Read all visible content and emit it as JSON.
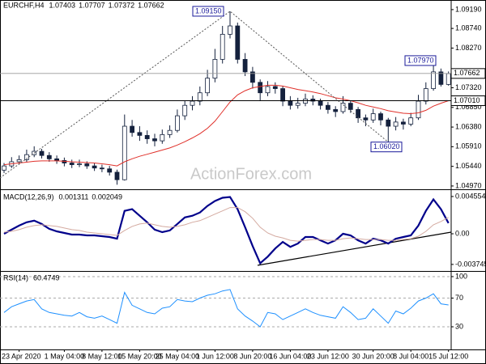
{
  "chart_data": [
    {
      "type": "candlestick",
      "title": "EURCHF,H4",
      "header_values": [
        1.07403,
        1.07707,
        1.07372,
        1.07662
      ],
      "watermark": "ActionForex.com",
      "color": "#14213d",
      "ylim": [
        1.0493,
        1.0942
      ],
      "yticks": [
        {
          "value": 1.0919,
          "label": "1.09190"
        },
        {
          "value": 1.0874,
          "label": "1.08740"
        },
        {
          "value": 1.0827,
          "label": "1.08270"
        },
        {
          "value": 1.0732,
          "label": "1.07320"
        },
        {
          "value": 1.0685,
          "label": "1.06850"
        },
        {
          "value": 1.0638,
          "label": "1.06380"
        },
        {
          "value": 1.0591,
          "label": "1.05910"
        },
        {
          "value": 1.0544,
          "label": "1.05440"
        },
        {
          "value": 1.0497,
          "label": "1.04970"
        }
      ],
      "ohlc": [
        [
          1.0535,
          1.0552,
          1.0528,
          1.0545
        ],
        [
          1.0545,
          1.0566,
          1.054,
          1.0555
        ],
        [
          1.0555,
          1.057,
          1.0548,
          1.056
        ],
        [
          1.056,
          1.0584,
          1.0555,
          1.0572
        ],
        [
          1.0572,
          1.0592,
          1.0566,
          1.058
        ],
        [
          1.058,
          1.0586,
          1.0563,
          1.057
        ],
        [
          1.057,
          1.0578,
          1.0555,
          1.0562
        ],
        [
          1.0562,
          1.057,
          1.055,
          1.0558
        ],
        [
          1.0558,
          1.0565,
          1.0544,
          1.0552
        ],
        [
          1.0552,
          1.056,
          1.054,
          1.0548
        ],
        [
          1.0548,
          1.056,
          1.0542,
          1.055
        ],
        [
          1.055,
          1.0556,
          1.0538,
          1.0545
        ],
        [
          1.0545,
          1.0552,
          1.0533,
          1.054
        ],
        [
          1.054,
          1.0548,
          1.053,
          1.0538
        ],
        [
          1.0538,
          1.0545,
          1.0522,
          1.053
        ],
        [
          1.053,
          1.0536,
          1.05,
          1.0512
        ],
        [
          1.0512,
          1.0668,
          1.051,
          1.064
        ],
        [
          1.064,
          1.0655,
          1.0615,
          1.0625
        ],
        [
          1.0625,
          1.064,
          1.0605,
          1.0618
        ],
        [
          1.0618,
          1.063,
          1.0598,
          1.061
        ],
        [
          1.061,
          1.0622,
          1.0592,
          1.0605
        ],
        [
          1.0605,
          1.0632,
          1.0598,
          1.062
        ],
        [
          1.062,
          1.0642,
          1.0612,
          1.063
        ],
        [
          1.063,
          1.068,
          1.0625,
          1.0665
        ],
        [
          1.0665,
          1.0702,
          1.0655,
          1.069
        ],
        [
          1.069,
          1.0712,
          1.0678,
          1.07
        ],
        [
          1.07,
          1.0735,
          1.069,
          1.072
        ],
        [
          1.072,
          1.0775,
          1.0712,
          1.0755
        ],
        [
          1.0755,
          1.0825,
          1.0745,
          1.08
        ],
        [
          1.08,
          1.088,
          1.079,
          1.086
        ],
        [
          1.086,
          1.0915,
          1.085,
          1.088
        ],
        [
          1.088,
          1.0888,
          1.079,
          1.08
        ],
        [
          1.08,
          1.0815,
          1.076,
          1.077
        ],
        [
          1.077,
          1.0782,
          1.073,
          1.0745
        ],
        [
          1.0745,
          1.0752,
          1.07,
          1.072
        ],
        [
          1.072,
          1.0748,
          1.0712,
          1.0735
        ],
        [
          1.0735,
          1.0745,
          1.0718,
          1.073
        ],
        [
          1.073,
          1.0736,
          1.0688,
          1.07
        ],
        [
          1.07,
          1.0712,
          1.068,
          1.069
        ],
        [
          1.069,
          1.0708,
          1.0682,
          1.0695
        ],
        [
          1.0695,
          1.0718,
          1.0688,
          1.0705
        ],
        [
          1.0705,
          1.0714,
          1.069,
          1.07
        ],
        [
          1.07,
          1.0706,
          1.068,
          1.069
        ],
        [
          1.069,
          1.0698,
          1.067,
          1.068
        ],
        [
          1.068,
          1.0688,
          1.0662,
          1.0675
        ],
        [
          1.0675,
          1.0712,
          1.067,
          1.0695
        ],
        [
          1.0695,
          1.0702,
          1.0672,
          1.068
        ],
        [
          1.068,
          1.0686,
          1.0648,
          1.066
        ],
        [
          1.066,
          1.0668,
          1.064,
          1.0655
        ],
        [
          1.0655,
          1.0682,
          1.0648,
          1.067
        ],
        [
          1.067,
          1.0675,
          1.0642,
          1.0655
        ],
        [
          1.0655,
          1.066,
          1.0602,
          1.064
        ],
        [
          1.064,
          1.0662,
          1.063,
          1.065
        ],
        [
          1.065,
          1.0658,
          1.0632,
          1.0645
        ],
        [
          1.0645,
          1.0672,
          1.064,
          1.066
        ],
        [
          1.066,
          1.0715,
          1.0655,
          1.07
        ],
        [
          1.07,
          1.0745,
          1.0692,
          1.073
        ],
        [
          1.073,
          1.0797,
          1.0725,
          1.077
        ],
        [
          1.077,
          1.0778,
          1.0735,
          1.074
        ],
        [
          1.074,
          1.0771,
          1.0737,
          1.0766
        ]
      ],
      "series": [
        {
          "color": "#e0302a",
          "values": [
            1.0548,
            1.055,
            1.0552,
            1.0554,
            1.0556,
            1.0557,
            1.0557,
            1.0557,
            1.0556,
            1.0555,
            1.0554,
            1.0553,
            1.0552,
            1.055,
            1.0548,
            1.0545,
            1.0555,
            1.0562,
            1.0568,
            1.0573,
            1.0578,
            1.0583,
            1.0588,
            1.0595,
            1.0603,
            1.0612,
            1.0622,
            1.0635,
            1.0652,
            1.0675,
            1.0698,
            1.0715,
            1.0725,
            1.0732,
            1.0735,
            1.0738,
            1.0738,
            1.0736,
            1.0732,
            1.0728,
            1.0725,
            1.0722,
            1.0718,
            1.0713,
            1.0708,
            1.0705,
            1.0701,
            1.0696,
            1.069,
            1.0686,
            1.0682,
            1.0677,
            1.0674,
            1.0671,
            1.067,
            1.0672,
            1.0678,
            1.0688,
            1.0695,
            1.0701
          ]
        }
      ],
      "price_lines": [
        {
          "value": 1.07662,
          "label": "1.07662"
        },
        {
          "value": 1.0701,
          "label": "1.07010"
        }
      ],
      "annotations": [
        {
          "value": 1.0915,
          "label": "1.09150"
        },
        {
          "value": 1.0797,
          "label": "1.07970"
        },
        {
          "value": 1.0602,
          "label": "1.06020"
        }
      ]
    },
    {
      "type": "line",
      "title": "MACD(12,26,9)",
      "header_values": [
        0.001311,
        0.002049
      ],
      "ylim": [
        -0.00435,
        0.00514
      ],
      "yticks": [
        0.004554,
        {
          "value": 0,
          "label": "0.00"
        },
        -0.003745
      ],
      "series": [
        {
          "color": "#00008b",
          "values": [
            0,
            0.0005,
            0.001,
            0.0014,
            0.0016,
            0.0012,
            0.0006,
            0.0003,
            0.0001,
            -0.0001,
            -0.0001,
            -0.0002,
            -0.0002,
            -0.0003,
            -0.0004,
            -0.0006,
            0.0028,
            0.003,
            0.0022,
            0.0014,
            0.0005,
            0.0002,
            0.0004,
            0.0012,
            0.002,
            0.0022,
            0.0026,
            0.0034,
            0.004,
            0.0044,
            0.0045,
            0.003,
            0.0008,
            -0.0015,
            -0.0036,
            -0.0028,
            -0.0018,
            -0.001,
            -0.0016,
            -0.0012,
            -0.0004,
            -0.0004,
            -0.0008,
            -0.0012,
            -0.0008,
            0,
            -0.0002,
            -0.0008,
            -0.0012,
            -0.0006,
            -0.0008,
            -0.0012,
            -0.0006,
            -0.0004,
            -0.0002,
            0.001,
            0.0028,
            0.0042,
            0.003,
            0.0013
          ]
        },
        {
          "color": "#d4aaa0",
          "values": [
            0.0002,
            0.0003,
            0.0005,
            0.0008,
            0.001,
            0.0011,
            0.001,
            0.0009,
            0.0007,
            0.0005,
            0.0004,
            0.0002,
            0.0001,
            0,
            -0.0001,
            -0.0002,
            0.0004,
            0.0009,
            0.0012,
            0.0013,
            0.0011,
            0.0009,
            0.0008,
            0.0009,
            0.0011,
            0.0014,
            0.0016,
            0.002,
            0.0024,
            0.0028,
            0.0032,
            0.0032,
            0.0027,
            0.0019,
            0.0008,
            0.0001,
            -0.0003,
            -0.0005,
            -0.0008,
            -0.0009,
            -0.0008,
            -0.0007,
            -0.0007,
            -0.0008,
            -0.0008,
            -0.0006,
            -0.0005,
            -0.0006,
            -0.0007,
            -0.0007,
            -0.0007,
            -0.0008,
            -0.0008,
            -0.0007,
            -0.0006,
            -0.0003,
            0.0003,
            0.0011,
            0.0015,
            0.002
          ]
        }
      ]
    },
    {
      "type": "line",
      "title": "RSI(14)",
      "header_values": [
        60.4749
      ],
      "ylim": [
        -1.6,
        105.6
      ],
      "yticks": [
        100,
        70,
        30
      ],
      "grid": true,
      "series": [
        {
          "color": "#1e90ff",
          "values": [
            50,
            58,
            62,
            66,
            68,
            55,
            50,
            48,
            46,
            45,
            50,
            44,
            42,
            45,
            40,
            35,
            78,
            60,
            55,
            50,
            48,
            56,
            58,
            68,
            66,
            65,
            70,
            74,
            76,
            80,
            82,
            55,
            45,
            38,
            30,
            50,
            48,
            40,
            45,
            50,
            55,
            50,
            46,
            44,
            42,
            58,
            50,
            40,
            42,
            55,
            45,
            35,
            52,
            48,
            56,
            66,
            70,
            76,
            62,
            60.47
          ]
        }
      ],
      "categories": [
        null,
        null,
        "23 Apr 2020",
        null,
        null,
        null,
        null,
        null,
        "1 May 04:00",
        null,
        null,
        null,
        null,
        "8 May 12:00",
        null,
        null,
        null,
        null,
        "15 May 20:00",
        null,
        null,
        null,
        null,
        "25 May 04:00",
        null,
        null,
        null,
        null,
        "1 Jun 12:00",
        null,
        null,
        null,
        null,
        "8 Jun 20:00",
        null,
        null,
        null,
        null,
        "16 Jun 04:00",
        null,
        null,
        null,
        null,
        "23 Jun 12:00",
        null,
        null,
        null,
        null,
        null,
        "30 Jun 20:00",
        null,
        null,
        null,
        null,
        "8 Jul 04:00",
        null,
        null,
        null,
        null,
        "15 Jul 12:00"
      ]
    }
  ]
}
